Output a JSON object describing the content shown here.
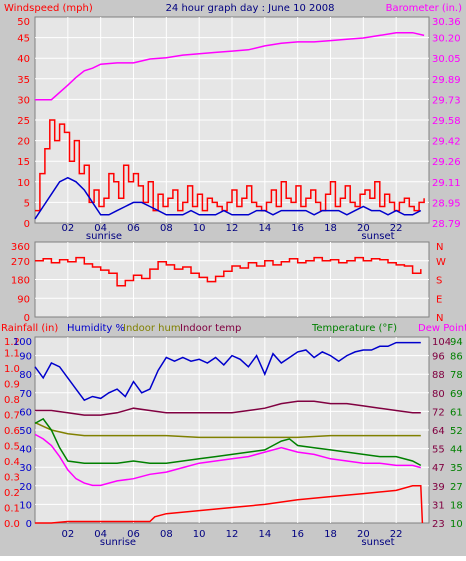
{
  "header": {
    "left_label": "Windspeed (mph)",
    "title": "24 hour graph day : June 10 2008",
    "right_label": "Barometer (in.)"
  },
  "colors": {
    "background": "#c8c8c8",
    "plot_background": "#e6e6e6",
    "grid": "#ffffff",
    "windspeed": "#ff0000",
    "wind_avg": "#0000cc",
    "barometer": "#ff00ff",
    "direction": "#ff0000",
    "humidity": "#0000cc",
    "indoor_hum": "#808000",
    "indoor_temp": "#800040",
    "temperature": "#008000",
    "dew_point": "#ff00ff",
    "rainfall": "#ff0000",
    "tick_text": "#000080"
  },
  "bottom_header": {
    "rainfall": "Rainfall (in)",
    "humidity": "Humidity %",
    "indoor_hum": "Indoor hum",
    "indoor_temp": "Indoor temp",
    "temperature": "Temperature (°F)",
    "dew_point": "Dew Point"
  },
  "x_ticks": [
    "02",
    "04",
    "06",
    "08",
    "10",
    "12",
    "14",
    "16",
    "18",
    "20",
    "22"
  ],
  "sunrise_label": "sunrise",
  "sunset_label": "sunset",
  "chart_data": [
    {
      "type": "line",
      "id": "wind",
      "axes": {
        "left": {
          "label": "Windspeed (mph)",
          "ticks": [
            "0",
            "5",
            "10",
            "15",
            "20",
            "25",
            "30",
            "35",
            "40",
            "45",
            "50"
          ],
          "range": [
            0,
            50
          ]
        },
        "right": {
          "label": "Barometer (in.)",
          "ticks": [
            "28.79",
            "28.95",
            "29.11",
            "29.26",
            "29.42",
            "29.58",
            "29.73",
            "29.89",
            "30.05",
            "30.20",
            "30.36"
          ],
          "range": [
            28.79,
            30.36
          ]
        }
      },
      "series": [
        {
          "name": "Windspeed (mph)",
          "axis": "left",
          "color": "#ff0000",
          "x": [
            0.0,
            0.3,
            0.6,
            0.9,
            1.2,
            1.5,
            1.8,
            2.1,
            2.4,
            2.7,
            3.0,
            3.3,
            3.6,
            3.9,
            4.2,
            4.5,
            4.8,
            5.1,
            5.4,
            5.7,
            6.0,
            6.3,
            6.6,
            6.9,
            7.2,
            7.5,
            7.8,
            8.1,
            8.4,
            8.7,
            9.0,
            9.3,
            9.6,
            9.9,
            10.2,
            10.5,
            10.8,
            11.1,
            11.4,
            11.7,
            12.0,
            12.3,
            12.6,
            12.9,
            13.2,
            13.5,
            13.8,
            14.1,
            14.4,
            14.7,
            15.0,
            15.3,
            15.6,
            15.9,
            16.2,
            16.5,
            16.8,
            17.1,
            17.4,
            17.7,
            18.0,
            18.3,
            18.6,
            18.9,
            19.2,
            19.5,
            19.8,
            20.1,
            20.4,
            20.7,
            21.0,
            21.3,
            21.6,
            21.9,
            22.2,
            22.5,
            22.8,
            23.1,
            23.4,
            23.7
          ],
          "values": [
            3,
            12,
            18,
            25,
            20,
            24,
            22,
            15,
            20,
            12,
            14,
            5,
            8,
            4,
            6,
            12,
            10,
            6,
            14,
            10,
            12,
            9,
            5,
            10,
            3,
            7,
            4,
            6,
            8,
            3,
            5,
            9,
            4,
            7,
            3,
            6,
            5,
            4,
            3,
            5,
            8,
            4,
            6,
            9,
            5,
            4,
            3,
            5,
            8,
            4,
            10,
            6,
            5,
            9,
            4,
            6,
            8,
            5,
            3,
            7,
            10,
            4,
            6,
            9,
            5,
            4,
            7,
            8,
            6,
            10,
            4,
            7,
            5,
            3,
            5,
            6,
            4,
            3,
            5,
            6
          ]
        },
        {
          "name": "Wind average",
          "axis": "left",
          "color": "#0000cc",
          "x": [
            0.0,
            0.5,
            1.0,
            1.5,
            2.0,
            2.5,
            3.0,
            3.5,
            4.0,
            4.5,
            5.0,
            5.5,
            6.0,
            6.5,
            7.0,
            7.5,
            8.0,
            8.5,
            9.0,
            9.5,
            10.0,
            10.5,
            11.0,
            11.5,
            12.0,
            12.5,
            13.0,
            13.5,
            14.0,
            14.5,
            15.0,
            15.5,
            16.0,
            16.5,
            17.0,
            17.5,
            18.0,
            18.5,
            19.0,
            19.5,
            20.0,
            20.5,
            21.0,
            21.5,
            22.0,
            22.5,
            23.0,
            23.5
          ],
          "values": [
            1,
            4,
            7,
            10,
            11,
            10,
            8,
            5,
            2,
            2,
            3,
            4,
            5,
            5,
            4,
            3,
            2,
            2,
            2,
            3,
            2,
            2,
            2,
            3,
            2,
            2,
            2,
            3,
            3,
            2,
            3,
            3,
            3,
            3,
            2,
            3,
            3,
            3,
            2,
            3,
            4,
            3,
            3,
            2,
            3,
            2,
            2,
            3
          ]
        },
        {
          "name": "Barometer (in.)",
          "axis": "right",
          "color": "#ff00ff",
          "x": [
            0.0,
            1.0,
            2.0,
            2.5,
            3.0,
            3.5,
            4.0,
            5.0,
            6.0,
            7.0,
            8.0,
            9.0,
            10.0,
            11.0,
            12.0,
            13.0,
            14.0,
            15.0,
            16.0,
            17.0,
            18.0,
            19.0,
            20.0,
            21.0,
            22.0,
            23.0,
            23.7
          ],
          "values": [
            29.73,
            29.73,
            29.84,
            29.9,
            29.95,
            29.97,
            30.0,
            30.01,
            30.01,
            30.04,
            30.05,
            30.07,
            30.08,
            30.09,
            30.1,
            30.11,
            30.14,
            30.16,
            30.17,
            30.17,
            30.18,
            30.19,
            30.2,
            30.22,
            30.24,
            30.24,
            30.22
          ]
        }
      ]
    },
    {
      "type": "line",
      "id": "direction",
      "axes": {
        "left": {
          "label": "",
          "ticks": [
            "0",
            "90",
            "180",
            "270",
            "360"
          ],
          "range": [
            0,
            360
          ]
        },
        "right": {
          "label": "",
          "ticks": [
            "N",
            "E",
            "S",
            "W",
            "N"
          ]
        }
      },
      "series": [
        {
          "name": "Wind direction",
          "axis": "left",
          "color": "#ff0000",
          "x": [
            0.0,
            0.5,
            1.0,
            1.5,
            2.0,
            2.5,
            3.0,
            3.5,
            4.0,
            4.5,
            5.0,
            5.5,
            6.0,
            6.5,
            7.0,
            7.5,
            8.0,
            8.5,
            9.0,
            9.5,
            10.0,
            10.5,
            11.0,
            11.5,
            12.0,
            12.5,
            13.0,
            13.5,
            14.0,
            14.5,
            15.0,
            15.5,
            16.0,
            16.5,
            17.0,
            17.5,
            18.0,
            18.5,
            19.0,
            19.5,
            20.0,
            20.5,
            21.0,
            21.5,
            22.0,
            22.5,
            23.0,
            23.5
          ],
          "values": [
            270,
            280,
            260,
            275,
            265,
            285,
            255,
            240,
            225,
            210,
            150,
            175,
            200,
            185,
            230,
            265,
            250,
            230,
            240,
            210,
            190,
            170,
            195,
            220,
            245,
            235,
            260,
            245,
            270,
            250,
            265,
            280,
            260,
            270,
            285,
            270,
            275,
            260,
            270,
            285,
            270,
            280,
            275,
            260,
            250,
            245,
            210,
            230
          ]
        }
      ]
    },
    {
      "type": "line",
      "id": "climate",
      "axes": {
        "left_rain": {
          "label": "Rainfall (in)",
          "ticks": [
            "0.0",
            "0.1",
            "0.2",
            "0.3",
            "0.4",
            "0.5",
            "0.6",
            "0.7",
            "0.8",
            "0.9",
            "1.0",
            "1.1",
            "1.2"
          ],
          "range": [
            0,
            1.2
          ]
        },
        "left_hum": {
          "label": "Humidity %",
          "ticks": [
            "0",
            "10",
            "20",
            "30",
            "40",
            "50",
            "60",
            "70",
            "80",
            "90",
            "100"
          ],
          "range": [
            0,
            100
          ]
        },
        "right_indoor": {
          "label": "Indoor temp",
          "ticks": [
            "23",
            "31",
            "39",
            "47",
            "55",
            "64",
            "72",
            "80",
            "88",
            "96",
            "104"
          ],
          "range": [
            23,
            104
          ]
        },
        "right_temp": {
          "label": "Temperature (°F)",
          "ticks": [
            "10",
            "18",
            "27",
            "35",
            "44",
            "52",
            "61",
            "69",
            "78",
            "86",
            "94"
          ],
          "range": [
            10,
            94
          ]
        }
      },
      "series": [
        {
          "name": "Humidity %",
          "axis": "left_hum",
          "color": "#0000cc",
          "x": [
            0.0,
            0.5,
            1.0,
            1.5,
            2.0,
            2.5,
            3.0,
            3.5,
            4.0,
            4.5,
            5.0,
            5.5,
            6.0,
            6.5,
            7.0,
            7.5,
            8.0,
            8.5,
            9.0,
            9.5,
            10.0,
            10.5,
            11.0,
            11.5,
            12.0,
            12.5,
            13.0,
            13.5,
            14.0,
            14.5,
            15.0,
            15.5,
            16.0,
            16.5,
            17.0,
            17.5,
            18.0,
            18.5,
            19.0,
            19.5,
            20.0,
            20.5,
            21.0,
            21.5,
            22.0,
            22.5,
            23.0,
            23.5
          ],
          "values": [
            84,
            78,
            86,
            84,
            78,
            72,
            66,
            68,
            67,
            70,
            72,
            68,
            76,
            70,
            72,
            82,
            89,
            87,
            89,
            87,
            88,
            86,
            89,
            85,
            90,
            88,
            84,
            90,
            80,
            91,
            86,
            89,
            92,
            93,
            89,
            92,
            90,
            87,
            90,
            92,
            93,
            93,
            95,
            95,
            97,
            97,
            97,
            97
          ]
        },
        {
          "name": "Indoor hum",
          "axis": "left_hum",
          "color": "#808000",
          "x": [
            0.0,
            0.5,
            1.0,
            2.0,
            3.0,
            4.0,
            6.0,
            8.0,
            10.0,
            12.0,
            14.0,
            16.0,
            18.0,
            20.0,
            22.0,
            23.5
          ],
          "values": [
            54,
            52,
            50,
            48,
            47,
            47,
            47,
            47,
            46,
            46,
            46,
            46,
            47,
            47,
            47,
            47
          ]
        },
        {
          "name": "Indoor temp",
          "axis": "right_indoor",
          "color": "#800040",
          "x": [
            0.0,
            1.0,
            2.0,
            3.0,
            4.0,
            5.0,
            6.0,
            7.0,
            8.0,
            9.0,
            10.0,
            11.0,
            12.0,
            13.0,
            14.0,
            15.0,
            16.0,
            17.0,
            18.0,
            19.0,
            20.0,
            21.0,
            22.0,
            23.0,
            23.5
          ],
          "values": [
            72,
            72,
            71,
            70,
            70,
            71,
            73,
            72,
            71,
            71,
            71,
            71,
            71,
            72,
            73,
            75,
            76,
            76,
            75,
            75,
            74,
            73,
            72,
            71,
            71
          ]
        },
        {
          "name": "Temperature (°F)",
          "axis": "right_temp",
          "color": "#008000",
          "x": [
            0.0,
            0.5,
            1.0,
            1.5,
            2.0,
            3.0,
            4.0,
            5.0,
            6.0,
            7.0,
            8.0,
            9.0,
            10.0,
            11.0,
            12.0,
            13.0,
            14.0,
            14.5,
            15.0,
            15.5,
            16.0,
            17.0,
            18.0,
            19.0,
            20.0,
            21.0,
            22.0,
            23.0,
            23.5
          ],
          "values": [
            55,
            57,
            52,
            44,
            38,
            37,
            37,
            37,
            38,
            37,
            37,
            38,
            39,
            40,
            41,
            42,
            43,
            45,
            47,
            48,
            45,
            44,
            43,
            42,
            41,
            40,
            40,
            38,
            36
          ]
        },
        {
          "name": "Dew Point",
          "axis": "right_temp",
          "color": "#ff00ff",
          "x": [
            0.0,
            0.5,
            1.0,
            1.5,
            2.0,
            2.5,
            3.0,
            3.5,
            4.0,
            5.0,
            6.0,
            7.0,
            8.0,
            9.0,
            10.0,
            11.0,
            12.0,
            13.0,
            14.0,
            15.0,
            16.0,
            17.0,
            18.0,
            19.0,
            20.0,
            21.0,
            22.0,
            23.0,
            23.5
          ],
          "values": [
            50,
            48,
            45,
            40,
            34,
            30,
            28,
            27,
            27,
            29,
            30,
            32,
            33,
            35,
            37,
            38,
            39,
            40,
            42,
            44,
            42,
            41,
            39,
            38,
            37,
            37,
            36,
            36,
            35
          ]
        },
        {
          "name": "Rainfall (in)",
          "axis": "left_rain",
          "color": "#ff0000",
          "x": [
            0.0,
            1.0,
            2.0,
            3.0,
            4.0,
            5.0,
            6.0,
            7.0,
            7.3,
            8.0,
            10.0,
            12.0,
            14.0,
            16.0,
            18.0,
            20.0,
            22.0,
            23.0,
            23.5,
            23.6
          ],
          "values": [
            0.0,
            0.0,
            0.01,
            0.01,
            0.01,
            0.01,
            0.01,
            0.01,
            0.04,
            0.06,
            0.08,
            0.1,
            0.12,
            0.15,
            0.17,
            0.19,
            0.21,
            0.24,
            0.24,
            0.0
          ]
        }
      ]
    }
  ]
}
